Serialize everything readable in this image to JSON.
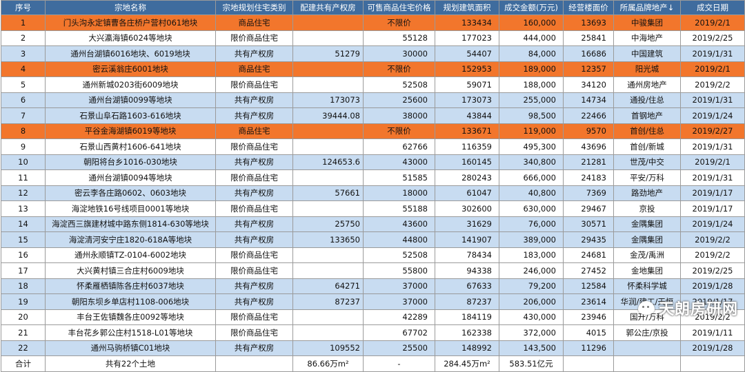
{
  "headers": [
    "序号",
    "宗地名称",
    "宗地规划住宅类别",
    "配建共有产权房",
    "可售商品住宅价格",
    "规划建筑面积",
    "成交金额(万元)",
    "经营楼面价",
    "所属品牌地产↓",
    "成交日期"
  ],
  "rows": [
    {
      "style": "orange",
      "cells": [
        "1",
        "门头沟永定镇曹各庄桥户营村061地块",
        "商品住宅",
        "",
        "不限价",
        "133434",
        "160,000",
        "13693",
        "中骏集团",
        "2019/2/1"
      ]
    },
    {
      "style": "white",
      "cells": [
        "2",
        "大兴瀛海镇6024等地块",
        "限价商品住宅",
        "",
        "55128",
        "177023",
        "444,000",
        "25841",
        "中海地产",
        "2019/2/25"
      ]
    },
    {
      "style": "blue",
      "cells": [
        "3",
        "通州台湖镇6016地块、6019地块",
        "共有产权房",
        "51279",
        "30000",
        "54407",
        "84,000",
        "16686",
        "中国建筑",
        "2019/1/31"
      ]
    },
    {
      "style": "orange",
      "cells": [
        "4",
        "密云溪翁庄6001地块",
        "商品住宅",
        "",
        "不限价",
        "152953",
        "189,000",
        "12357",
        "阳光城",
        "2019/2/1"
      ]
    },
    {
      "style": "white",
      "cells": [
        "5",
        "通州新城0203街6009地块",
        "限价商品住宅",
        "",
        "52508",
        "59071",
        "188,000",
        "34120",
        "通州房地产",
        "2019/2/2"
      ]
    },
    {
      "style": "blue",
      "cells": [
        "6",
        "通州台湖镇0099等地块",
        "共有产权房",
        "173073",
        "25600",
        "173073",
        "255,000",
        "14734",
        "通投/住总",
        "2019/1/31"
      ]
    },
    {
      "style": "blue",
      "cells": [
        "7",
        "石景山阜石路1603-616地块",
        "共有产权房",
        "39444.08",
        "38000",
        "43844",
        "98,500",
        "22466",
        "首钢地产",
        "2019/1/24"
      ]
    },
    {
      "style": "orange",
      "cells": [
        "8",
        "平谷金海湖镇6019等地块",
        "商品住宅",
        "",
        "不限价",
        "133671",
        "119,000",
        "9570",
        "首创/住总",
        "2019/2/27"
      ]
    },
    {
      "style": "white",
      "cells": [
        "9",
        "石景山西黄村1606-641地块",
        "限价商品住宅",
        "",
        "62766",
        "116359",
        "495,300",
        "43696",
        "首创/新城",
        "2019/1/31"
      ]
    },
    {
      "style": "blue",
      "cells": [
        "10",
        "朝阳将台乡1016-030地块",
        "共有产权房",
        "124653.6",
        "43000",
        "160145",
        "340,800",
        "21281",
        "世茂/中交",
        "2019/2/1"
      ]
    },
    {
      "style": "white",
      "cells": [
        "11",
        "通州台湖镇0094等地块",
        "限价商品住宅",
        "",
        "51585",
        "280243",
        "666,000",
        "24183",
        "平安/万科",
        "2019/1/31"
      ]
    },
    {
      "style": "blue",
      "cells": [
        "12",
        "密云李各庄路0602、0603地块",
        "共有产权房",
        "57661",
        "18000",
        "61047",
        "40,800",
        "7369",
        "路劲地产",
        "2019/1/17"
      ]
    },
    {
      "style": "white",
      "cells": [
        "13",
        "海淀地铁16号线项目0001等地块",
        "限价商品住宅",
        "",
        "55188",
        "302600",
        "630,000",
        "29467",
        "京投",
        "2019/1/17"
      ]
    },
    {
      "style": "blue",
      "cells": [
        "14",
        "海淀西三旗建材城中路东侧1814-630等地块",
        "共有产权房",
        "25750",
        "43600",
        "31629",
        "76,000",
        "30571",
        "金隅集团",
        "2019/1/24"
      ]
    },
    {
      "style": "blue",
      "cells": [
        "15",
        "海淀清河安宁庄1820-618A等地块",
        "共有产权房",
        "133650",
        "44800",
        "141907",
        "389,000",
        "29435",
        "金隅集团",
        "2019/2/2"
      ]
    },
    {
      "style": "white",
      "cells": [
        "16",
        "通州永顺镇TZ-0104-6002地块",
        "限价商品住宅",
        "",
        "52508",
        "78434",
        "183,000",
        "24681",
        "金茂/禹洲",
        "2019/2/2"
      ]
    },
    {
      "style": "white",
      "cells": [
        "17",
        "大兴黄村镇三合庄村6009地块",
        "限价商品住宅",
        "",
        "55800",
        "94338",
        "246,000",
        "27452",
        "金地集团",
        "2019/2/25"
      ]
    },
    {
      "style": "blue",
      "cells": [
        "18",
        "怀柔雁栖镇陈各庄村6037地块",
        "共有产权房",
        "64271",
        "37000",
        "67633",
        "79,200",
        "12584",
        "怀柔科学城",
        "2019/1/28"
      ]
    },
    {
      "style": "blue",
      "cells": [
        "19",
        "朝阳东坝乡单店村1108-006地块",
        "共有产权房",
        "87237",
        "37000",
        "87237",
        "206,000",
        "23614",
        "华润/建工/天恒",
        "2019/1/17"
      ]
    },
    {
      "style": "white",
      "cells": [
        "20",
        "丰台王佐镇魏各庄0092等地块",
        "限价商品住宅",
        "",
        "42289",
        "184119",
        "430,000",
        "23946",
        "国开/万科",
        "2019/2/2"
      ]
    },
    {
      "style": "white",
      "cells": [
        "21",
        "丰台花乡郭公庄村1518-L01等地块",
        "限价商品住宅",
        "",
        "67702",
        "162338",
        "372,000",
        "4015",
        "郭公庄/京投",
        "2019/1/11"
      ]
    },
    {
      "style": "blue",
      "cells": [
        "22",
        "通州马驹桥镇C01地块",
        "共有产权房",
        "109552",
        "25500",
        "148992",
        "143,500",
        "11296",
        "",
        "2019/1/28"
      ]
    }
  ],
  "total": [
    "合计",
    "共有22个土地",
    "",
    "86.66万m²",
    "-",
    "284.45万m²",
    "583.51亿元",
    "",
    "",
    ""
  ],
  "watermark": "天朗房研网"
}
